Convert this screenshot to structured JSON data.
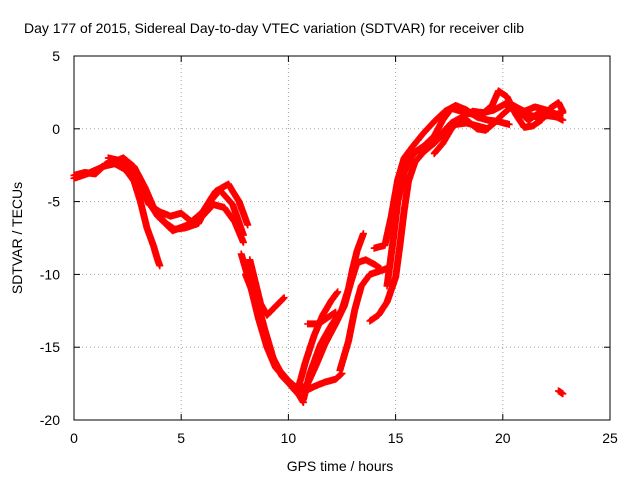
{
  "chart_data": {
    "type": "scatter",
    "title": "Day 177 of 2015, Sidereal Day-to-day VTEC variation (SDTVAR) for receiver clib",
    "xlabel": "GPS time / hours",
    "ylabel": "SDTVAR / TECUs",
    "xlim": [
      0,
      25
    ],
    "ylim": [
      -20,
      5
    ],
    "xticks": [
      "0",
      "5",
      "10",
      "15",
      "20",
      "25"
    ],
    "yticks": [
      "5",
      "0",
      "-5",
      "-10",
      "-15",
      "-20"
    ],
    "grid": true,
    "marker": "plus",
    "color": "#ff0000",
    "series": [
      {
        "points": [
          [
            0,
            -3.2
          ],
          [
            0.5,
            -3.0
          ],
          [
            1.0,
            -3.1
          ],
          [
            1.5,
            -2.4
          ],
          [
            2.0,
            -2.2
          ],
          [
            2.5,
            -2.6
          ],
          [
            3.0,
            -3.6
          ],
          [
            3.5,
            -5.2
          ],
          [
            4.0,
            -5.7
          ],
          [
            4.5,
            -6.0
          ],
          [
            5.0,
            -5.8
          ],
          [
            5.5,
            -6.4
          ],
          [
            6.0,
            -6.0
          ],
          [
            6.5,
            -5.2
          ],
          [
            7.0,
            -5.4
          ],
          [
            7.5,
            -6.4
          ],
          [
            7.9,
            -7.8
          ]
        ]
      },
      {
        "points": [
          [
            0,
            -3.4
          ],
          [
            0.6,
            -3.1
          ],
          [
            1.2,
            -2.7
          ],
          [
            1.8,
            -2.3
          ],
          [
            2.3,
            -2.0
          ],
          [
            2.8,
            -2.6
          ],
          [
            3.3,
            -4.0
          ],
          [
            3.8,
            -5.7
          ],
          [
            4.3,
            -6.5
          ],
          [
            4.7,
            -6.9
          ],
          [
            5.2,
            -6.8
          ],
          [
            5.8,
            -6.5
          ],
          [
            6.3,
            -5.1
          ],
          [
            6.8,
            -4.2
          ],
          [
            7.4,
            -5.2
          ],
          [
            7.9,
            -7.3
          ]
        ]
      },
      {
        "points": [
          [
            1.3,
            -2.6
          ],
          [
            1.9,
            -2.4
          ],
          [
            2.4,
            -2.8
          ],
          [
            2.8,
            -3.6
          ],
          [
            3.1,
            -5.0
          ],
          [
            3.4,
            -6.8
          ],
          [
            3.7,
            -8.0
          ],
          [
            3.9,
            -9.0
          ],
          [
            4.0,
            -9.4
          ]
        ]
      },
      {
        "points": [
          [
            1.6,
            -2.0
          ],
          [
            2.2,
            -2.2
          ],
          [
            2.7,
            -3.0
          ],
          [
            3.3,
            -4.6
          ],
          [
            3.9,
            -6.0
          ],
          [
            4.6,
            -7.0
          ],
          [
            5.3,
            -6.6
          ],
          [
            6.0,
            -5.7
          ],
          [
            6.6,
            -4.3
          ],
          [
            7.2,
            -3.8
          ],
          [
            7.7,
            -5.0
          ],
          [
            8.1,
            -6.6
          ]
        ]
      },
      {
        "points": [
          [
            8.2,
            -9.0
          ],
          [
            8.5,
            -10.8
          ],
          [
            8.7,
            -12.0
          ],
          [
            9.0,
            -12.8
          ],
          [
            9.4,
            -12.2
          ],
          [
            9.8,
            -11.6
          ]
        ]
      },
      {
        "points": [
          [
            8.0,
            -10.0
          ],
          [
            8.4,
            -11.5
          ],
          [
            8.8,
            -13.6
          ],
          [
            9.2,
            -15.5
          ],
          [
            9.6,
            -16.6
          ],
          [
            10.0,
            -17.3
          ],
          [
            10.4,
            -17.8
          ],
          [
            10.8,
            -18.0
          ],
          [
            11.2,
            -17.7
          ],
          [
            11.7,
            -17.4
          ],
          [
            12.2,
            -17.2
          ],
          [
            12.5,
            -16.8
          ]
        ]
      },
      {
        "points": [
          [
            7.8,
            -8.6
          ],
          [
            8.2,
            -10.6
          ],
          [
            8.6,
            -13.0
          ],
          [
            9.0,
            -15.0
          ],
          [
            9.4,
            -16.4
          ],
          [
            9.8,
            -17.1
          ],
          [
            10.2,
            -17.8
          ],
          [
            10.5,
            -18.3
          ],
          [
            10.7,
            -18.8
          ]
        ]
      },
      {
        "points": [
          [
            8.4,
            -11.0
          ],
          [
            8.9,
            -13.8
          ],
          [
            9.3,
            -15.8
          ],
          [
            9.7,
            -17.0
          ],
          [
            10.1,
            -17.6
          ],
          [
            10.5,
            -18.0
          ],
          [
            10.9,
            -17.5
          ],
          [
            11.3,
            -16.2
          ],
          [
            11.7,
            -14.8
          ],
          [
            12.2,
            -13.4
          ],
          [
            12.6,
            -12.2
          ],
          [
            12.9,
            -10.6
          ],
          [
            13.2,
            -9.2
          ],
          [
            13.6,
            -9.0
          ],
          [
            14.0,
            -9.3
          ],
          [
            14.3,
            -9.6
          ]
        ]
      },
      {
        "points": [
          [
            10.5,
            -17.6
          ],
          [
            10.8,
            -16.0
          ],
          [
            11.2,
            -14.2
          ],
          [
            11.6,
            -12.8
          ],
          [
            12.0,
            -11.8
          ],
          [
            12.3,
            -11.2
          ]
        ]
      },
      {
        "points": [
          [
            10.7,
            -18.6
          ],
          [
            11.0,
            -16.8
          ],
          [
            11.5,
            -14.8
          ],
          [
            12.0,
            -13.5
          ],
          [
            12.5,
            -12.4
          ],
          [
            12.8,
            -11.0
          ],
          [
            13.0,
            -9.6
          ],
          [
            13.2,
            -8.4
          ],
          [
            13.5,
            -7.2
          ]
        ]
      },
      {
        "points": [
          [
            10.9,
            -13.4
          ],
          [
            11.4,
            -13.4
          ],
          [
            11.8,
            -13.0
          ],
          [
            12.2,
            -12.6
          ]
        ]
      },
      {
        "points": [
          [
            12.4,
            -16.6
          ],
          [
            12.8,
            -14.6
          ],
          [
            13.1,
            -12.4
          ],
          [
            13.4,
            -10.8
          ],
          [
            13.8,
            -10.0
          ],
          [
            14.2,
            -9.8
          ],
          [
            14.6,
            -9.6
          ]
        ]
      },
      {
        "points": [
          [
            13.8,
            -13.2
          ],
          [
            14.2,
            -12.8
          ],
          [
            14.6,
            -11.9
          ],
          [
            15.0,
            -10.2
          ],
          [
            15.2,
            -8.0
          ],
          [
            15.4,
            -5.6
          ],
          [
            15.6,
            -3.6
          ],
          [
            15.9,
            -2.3
          ],
          [
            16.3,
            -1.6
          ],
          [
            16.8,
            -1.0
          ],
          [
            17.3,
            -0.2
          ],
          [
            17.8,
            0.3
          ],
          [
            18.3,
            0.4
          ],
          [
            18.8,
            0.2
          ],
          [
            19.3,
            0.0
          ]
        ]
      },
      {
        "points": [
          [
            14.0,
            -8.2
          ],
          [
            14.5,
            -8.0
          ],
          [
            14.8,
            -6.0
          ],
          [
            15.1,
            -3.5
          ],
          [
            15.4,
            -2.0
          ],
          [
            15.8,
            -1.2
          ],
          [
            16.3,
            -0.3
          ],
          [
            16.8,
            0.5
          ],
          [
            17.3,
            1.2
          ],
          [
            17.8,
            1.6
          ],
          [
            18.3,
            1.3
          ],
          [
            18.8,
            0.8
          ],
          [
            19.3,
            0.6
          ],
          [
            19.8,
            0.5
          ],
          [
            20.3,
            0.3
          ]
        ]
      },
      {
        "points": [
          [
            14.6,
            -10.8
          ],
          [
            14.9,
            -7.5
          ],
          [
            15.1,
            -5.0
          ],
          [
            15.4,
            -3.0
          ],
          [
            15.7,
            -1.9
          ],
          [
            16.1,
            -1.4
          ],
          [
            16.6,
            -1.0
          ],
          [
            17.1,
            -0.4
          ],
          [
            17.6,
            0.4
          ],
          [
            18.1,
            0.8
          ],
          [
            18.6,
            1.2
          ],
          [
            19.1,
            1.1
          ],
          [
            19.6,
            1.3
          ],
          [
            20.1,
            1.7
          ],
          [
            20.6,
            1.2
          ],
          [
            21.1,
            1.0
          ],
          [
            21.6,
            0.8
          ],
          [
            22.1,
            0.9
          ],
          [
            22.6,
            0.8
          ]
        ]
      },
      {
        "points": [
          [
            15.5,
            -2.5
          ],
          [
            15.9,
            -1.6
          ],
          [
            16.3,
            -1.2
          ],
          [
            16.8,
            -0.5
          ],
          [
            17.2,
            0.6
          ],
          [
            17.6,
            1.4
          ],
          [
            18.1,
            1.2
          ],
          [
            18.6,
            1.0
          ],
          [
            19.1,
            1.1
          ],
          [
            19.5,
            1.6
          ],
          [
            19.8,
            2.6
          ],
          [
            20.2,
            2.2
          ],
          [
            20.6,
            1.0
          ],
          [
            21.0,
            0.1
          ],
          [
            21.4,
            0.2
          ],
          [
            21.8,
            0.6
          ],
          [
            22.2,
            1.4
          ],
          [
            22.6,
            1.8
          ],
          [
            22.8,
            1.2
          ]
        ]
      },
      {
        "points": [
          [
            16.8,
            -1.7
          ],
          [
            17.2,
            -1.0
          ],
          [
            17.6,
            0.0
          ],
          [
            18.0,
            0.6
          ],
          [
            18.4,
            0.5
          ],
          [
            18.8,
            0.0
          ],
          [
            19.2,
            -0.1
          ],
          [
            19.6,
            0.4
          ],
          [
            20.0,
            1.0
          ],
          [
            20.4,
            1.5
          ],
          [
            20.8,
            1.1
          ],
          [
            21.2,
            0.6
          ],
          [
            21.6,
            1.0
          ],
          [
            22.0,
            1.2
          ],
          [
            22.4,
            0.9
          ],
          [
            22.8,
            0.6
          ]
        ]
      },
      {
        "points": [
          [
            20.5,
            1.6
          ],
          [
            21.0,
            1.2
          ],
          [
            21.5,
            1.5
          ],
          [
            22.0,
            1.3
          ],
          [
            22.5,
            1.0
          ],
          [
            22.8,
            1.1
          ]
        ]
      },
      {
        "points": [
          [
            22.6,
            -18.0
          ],
          [
            22.8,
            -18.2
          ]
        ]
      }
    ]
  }
}
